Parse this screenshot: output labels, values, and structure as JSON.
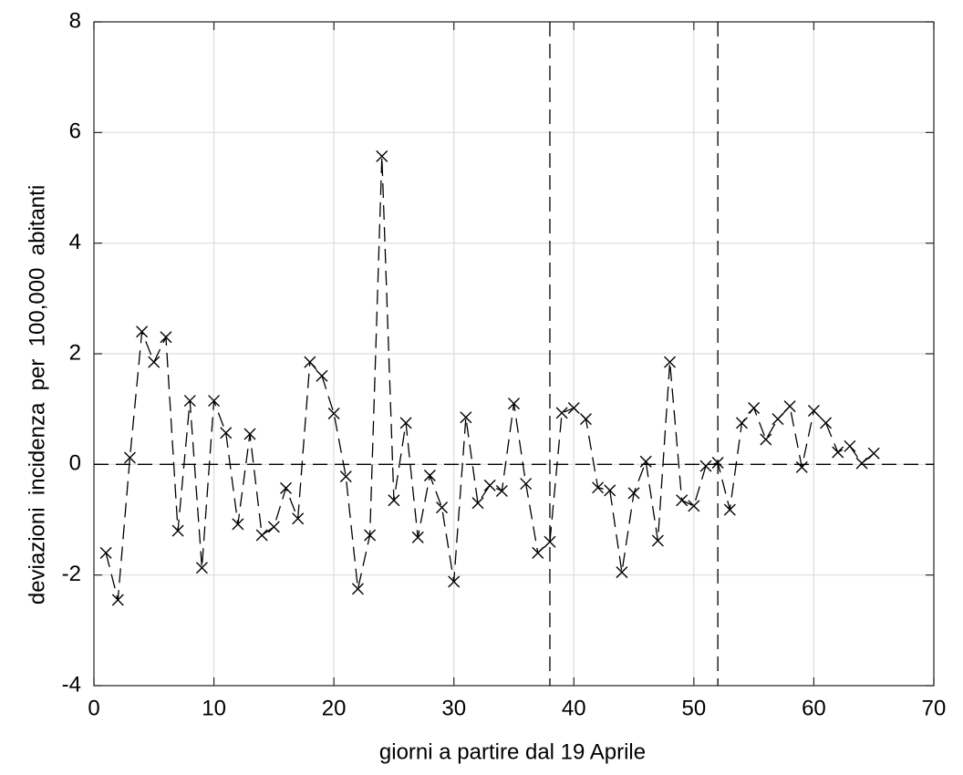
{
  "chart_data": {
    "type": "line",
    "xlabel": "giorni a partire dal 19 Aprile",
    "ylabel": "deviazioni  incidenza  per  100,000  abitanti",
    "x": [
      1,
      2,
      3,
      4,
      5,
      6,
      7,
      8,
      9,
      10,
      11,
      12,
      13,
      14,
      15,
      16,
      17,
      18,
      19,
      20,
      21,
      22,
      23,
      24,
      25,
      26,
      27,
      28,
      29,
      30,
      31,
      32,
      33,
      34,
      35,
      36,
      37,
      38,
      39,
      40,
      41,
      42,
      43,
      44,
      45,
      46,
      47,
      48,
      49,
      50,
      51,
      52,
      53,
      54,
      55,
      56,
      57,
      58,
      59,
      60,
      61,
      62,
      63,
      64,
      65
    ],
    "values": [
      -1.6,
      -2.45,
      0.12,
      2.4,
      1.85,
      2.3,
      -1.2,
      1.15,
      -1.87,
      1.15,
      0.57,
      -1.08,
      0.55,
      -1.28,
      -1.13,
      -0.43,
      -0.98,
      1.85,
      1.6,
      0.92,
      -0.22,
      -2.25,
      -1.28,
      5.57,
      -0.65,
      0.75,
      -1.32,
      -0.2,
      -0.78,
      -2.12,
      0.85,
      -0.7,
      -0.38,
      -0.48,
      1.1,
      -0.35,
      -1.6,
      -1.4,
      0.93,
      1.02,
      0.82,
      -0.42,
      -0.47,
      -1.95,
      -0.52,
      0.05,
      -1.38,
      1.85,
      -0.65,
      -0.75,
      -0.03,
      0.03,
      -0.82,
      0.75,
      1.02,
      0.45,
      0.82,
      1.05,
      -0.05,
      0.97,
      0.75,
      0.22,
      0.33,
      0.02,
      0.2
    ],
    "color": "#000000",
    "marker": "x",
    "xlim": [
      0,
      70
    ],
    "xticks": [
      0,
      10,
      20,
      30,
      40,
      50,
      60,
      70
    ],
    "ylim": [
      -4,
      8
    ],
    "yticks": [
      -4,
      -2,
      0,
      2,
      4,
      6,
      8
    ],
    "grid": true,
    "hline": 0,
    "vlines": [
      38,
      52
    ]
  }
}
